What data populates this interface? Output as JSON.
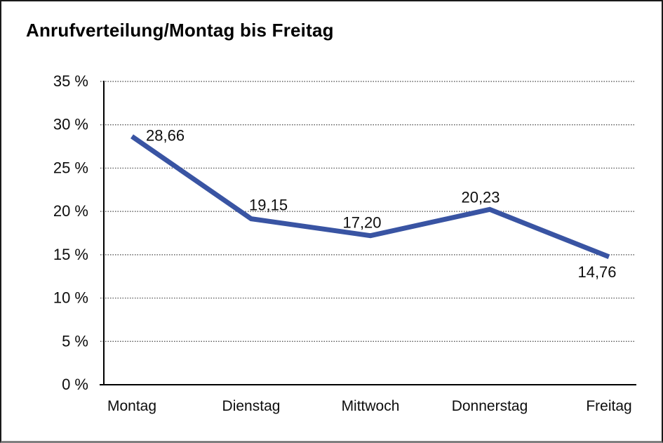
{
  "window": {
    "background": "#ffffff",
    "frame_border_color": "#1a1a1a",
    "frame_bottom_border_color": "#7f7f7f"
  },
  "chart_data": {
    "type": "line",
    "title": "Anrufverteilung/Montag bis Freitag",
    "categories": [
      "Montag",
      "Dienstag",
      "Mittwoch",
      "Donnerstag",
      "Freitag"
    ],
    "values": [
      28.66,
      19.15,
      17.2,
      20.23,
      14.76
    ],
    "value_labels": [
      "28,66",
      "19,15",
      "17,20",
      "20,23",
      "14,76"
    ],
    "xlabel": "",
    "ylabel": "",
    "ylim": [
      0,
      35
    ],
    "ytick_values": [
      0,
      5,
      10,
      15,
      20,
      25,
      30,
      35
    ],
    "ytick_labels": [
      "0 %",
      "5 %",
      "10 %",
      "15 %",
      "20 %",
      "25 %",
      "30 %",
      "35 %"
    ],
    "grid": "horizontal-dotted",
    "legend": "none",
    "line_color": "#3954A3",
    "text_color": "#0d0d0d",
    "axis_color": "#000000",
    "grid_color": "#454545"
  }
}
